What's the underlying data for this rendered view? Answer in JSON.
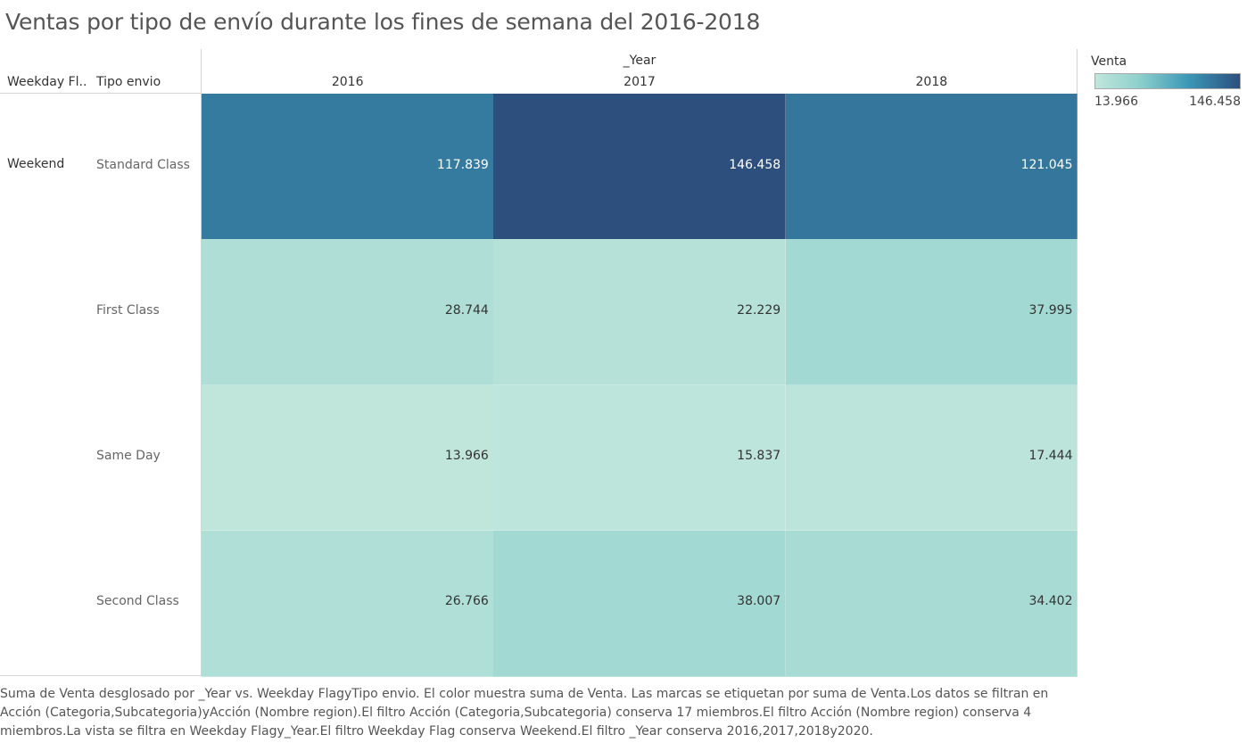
{
  "title": "Ventas por tipo de envío durante los fines de semana del 2016-2018",
  "headers": {
    "weekday_flag": "Weekday Fl..",
    "tipo_envio": "Tipo envio",
    "year_field": "_Year"
  },
  "weekday_flag_value": "Weekend",
  "legend": {
    "title": "Venta",
    "min": "13.966",
    "max": "146.458",
    "min_value": 13966,
    "max_value": 146458,
    "colors": [
      "#c0e6dc",
      "#8fd0cd",
      "#3a96b6",
      "#2c4f7d"
    ]
  },
  "chart_data": {
    "type": "heatmap",
    "title": "Ventas por tipo de envío durante los fines de semana del 2016-2018",
    "x": [
      "2016",
      "2017",
      "2018"
    ],
    "y": [
      "Standard Class",
      "First Class",
      "Same Day",
      "Second Class"
    ],
    "values": [
      [
        117839,
        146458,
        121045
      ],
      [
        28744,
        22229,
        37995
      ],
      [
        13966,
        15837,
        17444
      ],
      [
        26766,
        38007,
        34402
      ]
    ],
    "labels": [
      [
        "117.839",
        "146.458",
        "121.045"
      ],
      [
        "28.744",
        "22.229",
        "37.995"
      ],
      [
        "13.966",
        "15.837",
        "17.444"
      ],
      [
        "26.766",
        "38.007",
        "34.402"
      ]
    ],
    "xlabel": "_Year",
    "ylabel": "Tipo envio",
    "color_legend": "Venta"
  },
  "caption": "Suma de Venta desglosado por _Year vs. Weekday FlagyTipo envio. El color muestra suma de Venta. Las marcas se etiquetan por suma de Venta.Los datos se filtran en Acción (Categoria,Subcategoria)yAcción (Nombre region).El filtro Acción (Categoria,Subcategoria) conserva 17 miembros.El filtro Acción (Nombre region) conserva 4 miembros.La vista se filtra en Weekday Flagy_Year.El filtro Weekday Flag conserva Weekend.El filtro _Year conserva 2016,2017,2018y2020."
}
